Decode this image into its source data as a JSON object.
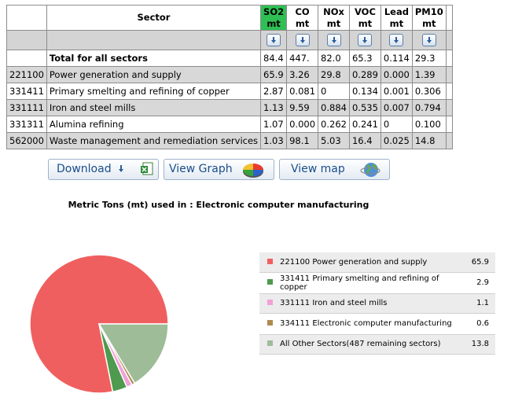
{
  "table": {
    "sector_header": "Sector",
    "columns": [
      {
        "line1": "SO2",
        "line2": "mt",
        "active": true
      },
      {
        "line1": "CO",
        "line2": "mt"
      },
      {
        "line1": "NOx",
        "line2": "mt"
      },
      {
        "line1": "VOC",
        "line2": "mt"
      },
      {
        "line1": "Lead",
        "line2": "mt"
      },
      {
        "line1": "PM10",
        "line2": "mt"
      }
    ],
    "total": {
      "label": "Total for all sectors",
      "values": [
        "84.4",
        "447.",
        "82.0",
        "65.3",
        "0.114",
        "29.3"
      ]
    },
    "rows": [
      {
        "code": "221100",
        "name": "Power generation and supply",
        "values": [
          "65.9",
          "3.26",
          "29.8",
          "0.289",
          "0.000",
          "1.39"
        ]
      },
      {
        "code": "331411",
        "name": "Primary smelting and refining of copper",
        "values": [
          "2.87",
          "0.081",
          "0",
          "0.134",
          "0.001",
          "0.306"
        ]
      },
      {
        "code": "331111",
        "name": "Iron and steel mills",
        "values": [
          "1.13",
          "9.59",
          "0.884",
          "0.535",
          "0.007",
          "0.794"
        ]
      },
      {
        "code": "331311",
        "name": "Alumina refining",
        "values": [
          "1.07",
          "0.000",
          "0.262",
          "0.241",
          "0",
          "0.100"
        ]
      },
      {
        "code": "562000",
        "name": "Waste management and remediation services",
        "values": [
          "1.03",
          "98.1",
          "5.03",
          "16.4",
          "0.025",
          "14.8"
        ]
      }
    ]
  },
  "buttons": {
    "download": "Download",
    "view_graph": "View Graph",
    "view_map": "View map"
  },
  "chart_data": {
    "type": "pie",
    "title": "Metric Tons (mt) used in : Electronic computer manufacturing",
    "slices": [
      {
        "label": "221100 Power generation and supply",
        "value": 65.9,
        "color": "#f05f5f"
      },
      {
        "label": "331411 Primary smelting and refining of copper",
        "value": 2.9,
        "color": "#4e9a4e"
      },
      {
        "label": "331111 Iron and steel mills",
        "value": 1.1,
        "color": "#f2a0d8"
      },
      {
        "label": "334111 Electronic computer manufacturing",
        "value": 0.6,
        "color": "#b08a50"
      },
      {
        "label": "All Other Sectors(487 remaining sectors)",
        "value": 13.8,
        "color": "#9ebc98"
      }
    ],
    "legend_display_values": [
      "65.9",
      "2.9",
      "1.1",
      "0.6",
      "13.8"
    ],
    "legend_position": "right"
  }
}
